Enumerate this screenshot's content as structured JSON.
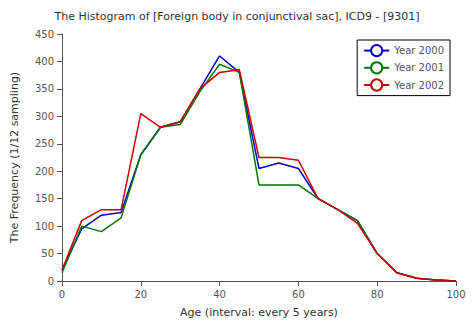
{
  "chart_data": {
    "type": "line",
    "title": "The Histogram of [Foreign body in conjunctival sac], ICD9 - [9301]",
    "xlabel": "Age (interval: every 5 years)",
    "ylabel": "The Frequency (1/12 sampling)",
    "x": [
      0,
      5,
      10,
      15,
      20,
      25,
      30,
      35,
      40,
      45,
      50,
      55,
      60,
      65,
      70,
      75,
      80,
      85,
      90,
      95,
      100
    ],
    "series": [
      {
        "name": "Year 2000",
        "color": "#0000cc",
        "values": [
          20,
          95,
          120,
          125,
          230,
          280,
          290,
          350,
          410,
          380,
          205,
          215,
          205,
          150,
          130,
          110,
          50,
          15,
          5,
          2,
          0
        ]
      },
      {
        "name": "Year 2001",
        "color": "#007700",
        "values": [
          15,
          100,
          90,
          115,
          230,
          280,
          285,
          345,
          395,
          380,
          175,
          175,
          175,
          150,
          130,
          110,
          50,
          15,
          5,
          2,
          0
        ]
      },
      {
        "name": "Year 2002",
        "color": "#cc0000",
        "values": [
          20,
          110,
          130,
          130,
          305,
          280,
          290,
          350,
          380,
          385,
          225,
          225,
          220,
          150,
          130,
          105,
          50,
          15,
          5,
          2,
          0
        ]
      }
    ],
    "xlim": [
      0,
      100
    ],
    "ylim": [
      0,
      450
    ],
    "xticks": [
      0,
      20,
      40,
      60,
      80,
      100
    ],
    "yticks": [
      0,
      50,
      100,
      150,
      200,
      250,
      300,
      350,
      400,
      450
    ],
    "grid": false,
    "legend": "upper right"
  }
}
